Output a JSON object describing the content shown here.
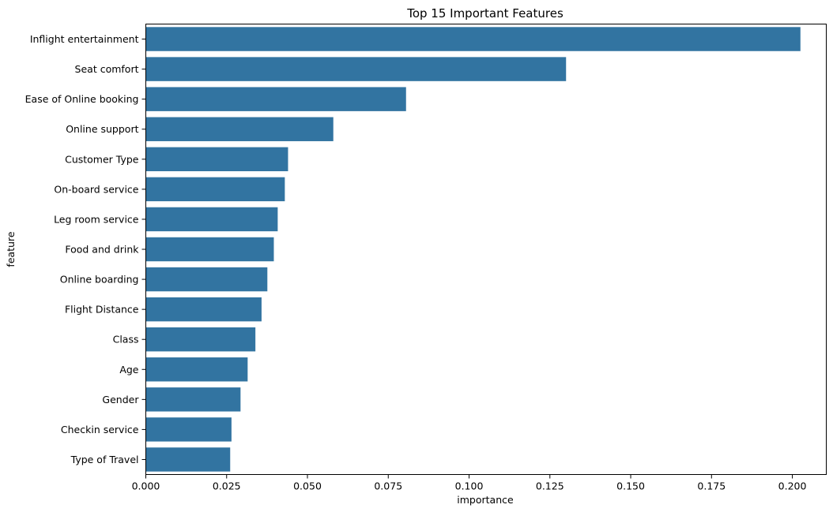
{
  "chart_data": {
    "type": "bar",
    "orientation": "horizontal",
    "title": "Top 15 Important Features",
    "xlabel": "importance",
    "ylabel": "feature",
    "xlim": [
      0.0,
      0.2105
    ],
    "xticks": [
      0.0,
      0.025,
      0.05,
      0.075,
      0.1,
      0.125,
      0.15,
      0.175,
      0.2
    ],
    "xtick_labels": [
      "0.000",
      "0.025",
      "0.050",
      "0.075",
      "0.100",
      "0.125",
      "0.150",
      "0.175",
      "0.200"
    ],
    "grid": false,
    "bar_color": "#3274a1",
    "categories": [
      "Inflight entertainment",
      "Seat comfort",
      "Ease of Online booking",
      "Online support",
      "Customer Type",
      "On-board service",
      "Leg room service",
      "Food and drink",
      "Online boarding",
      "Flight Distance",
      "Class",
      "Age",
      "Gender",
      "Checkin service",
      "Type of Travel"
    ],
    "values": [
      0.2025,
      0.13,
      0.0805,
      0.058,
      0.044,
      0.043,
      0.0408,
      0.0396,
      0.0376,
      0.0358,
      0.0339,
      0.0315,
      0.0293,
      0.0265,
      0.0261
    ]
  }
}
